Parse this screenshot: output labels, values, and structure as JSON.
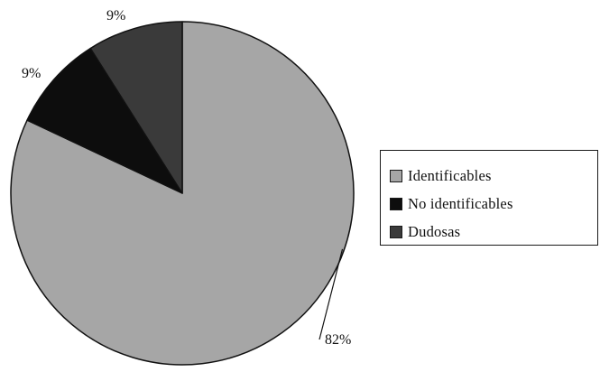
{
  "chart_data": {
    "type": "pie",
    "slices": [
      {
        "label": "Identificables",
        "value": 82,
        "display": "82%",
        "color": "#a6a6a6"
      },
      {
        "label": "No identificables",
        "value": 9,
        "display": "9%",
        "color": "#0d0d0d"
      },
      {
        "label": "Dudosas",
        "value": 9,
        "display": "9%",
        "color": "#3a3a3a"
      }
    ],
    "start_angle_deg": 0,
    "direction": "clockwise",
    "legend": "right",
    "title": ""
  }
}
